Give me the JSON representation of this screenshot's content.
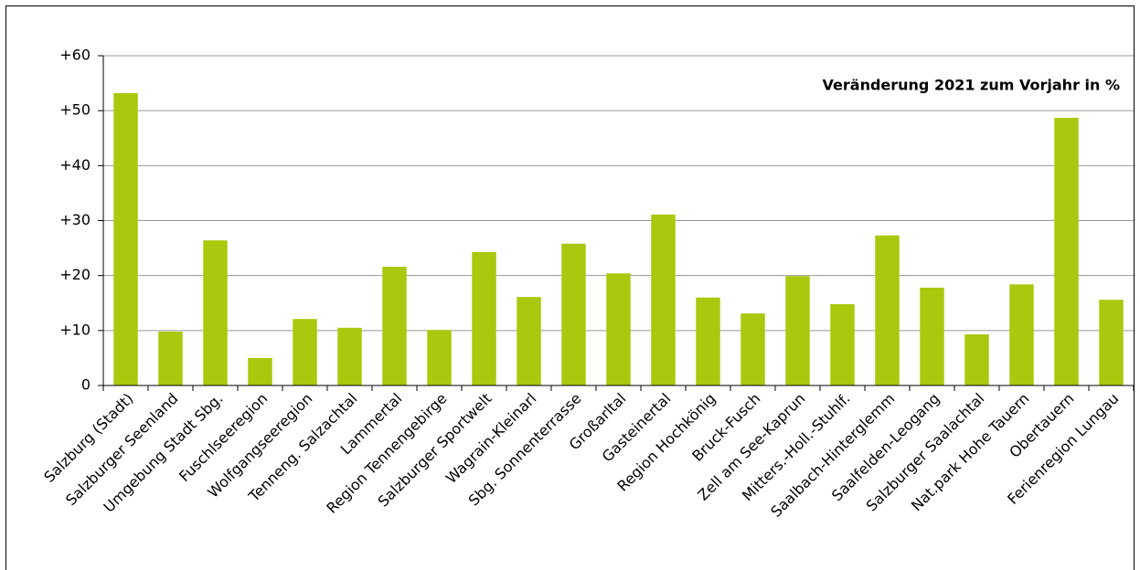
{
  "chart_data": {
    "type": "bar",
    "annotation": "Veränderung 2021 zum Vorjahr in %",
    "categories": [
      "Salzburg (Stadt)",
      "Salzburger Seenland",
      "Umgebung Stadt Sbg.",
      "Fuschlseeregion",
      "Wolfgangseeregion",
      "Tenneng. Salzachtal",
      "Lammertal",
      "Region Tennengebirge",
      "Salzburger Sportwelt",
      "Wagrain-Kleinarl",
      "Sbg. Sonnenterrasse",
      "Großarltal",
      "Gasteinertal",
      "Region Hochkönig",
      "Bruck-Fusch",
      "Zell am See-Kaprun",
      "Mitters.-Holl.-Stuhlf.",
      "Saalbach-Hinterglemm",
      "Saalfelden-Leogang",
      "Salzburger Saalachtal",
      "Nat.park Hohe Tauern",
      "Obertauern",
      "Ferienregion Lungau"
    ],
    "values": [
      53.2,
      9.8,
      26.4,
      5.0,
      12.1,
      10.5,
      21.6,
      10.1,
      24.3,
      16.1,
      25.8,
      20.4,
      31.1,
      16.0,
      13.1,
      19.9,
      14.8,
      27.3,
      17.8,
      9.3,
      18.4,
      48.7,
      15.6
    ],
    "color": "#aac80e",
    "ylim": [
      0,
      60
    ],
    "yticks": [
      0,
      {
        "value": 10,
        "label": "+10"
      },
      {
        "value": 20,
        "label": "+20"
      },
      {
        "value": 30,
        "label": "+30"
      },
      {
        "value": 40,
        "label": "+40"
      },
      {
        "value": 50,
        "label": "+50"
      },
      {
        "value": 60,
        "label": "+60"
      }
    ],
    "grid": true
  }
}
